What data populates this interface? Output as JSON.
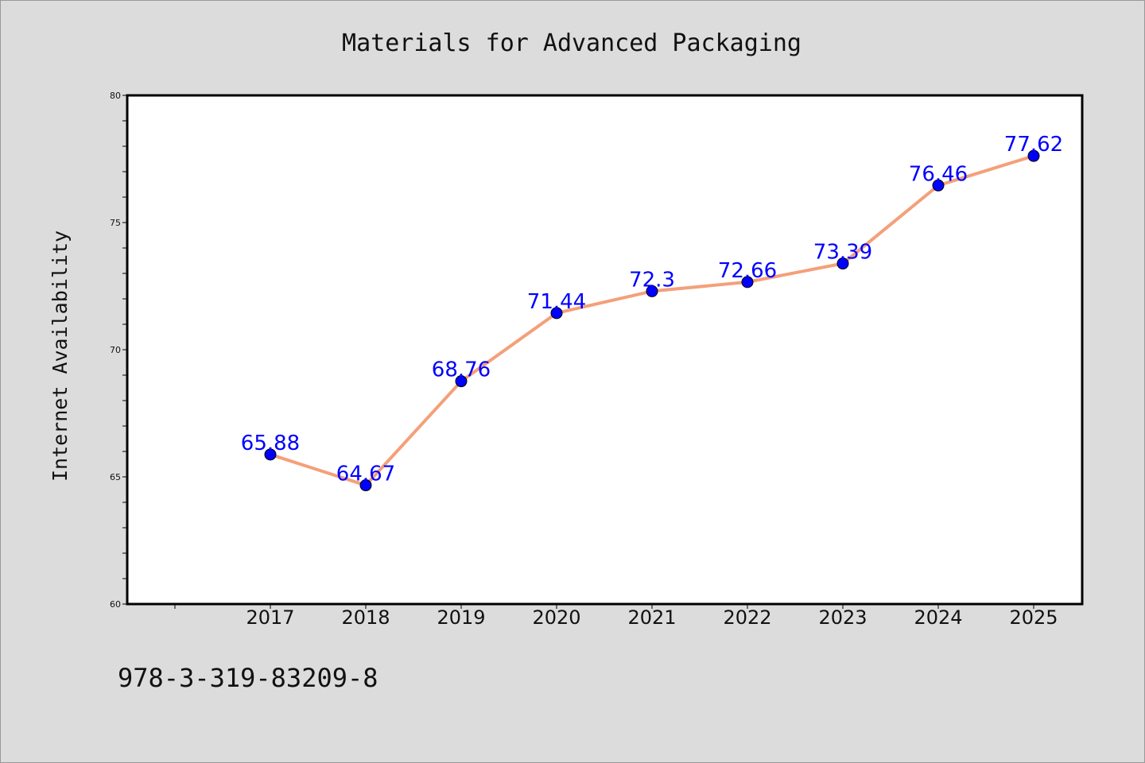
{
  "chart_data": {
    "type": "line",
    "title": "Materials for Advanced Packaging",
    "ylabel": "Internet Availability",
    "xlabel": "",
    "categories": [
      "2017",
      "2018",
      "2019",
      "2020",
      "2021",
      "2022",
      "2023",
      "2024",
      "2025"
    ],
    "series": [
      {
        "values": [
          65.88,
          64.67,
          68.76,
          71.44,
          72.3,
          72.66,
          73.39,
          76.46,
          77.62
        ],
        "line_color": "#f4a07a",
        "marker_color": "#0000ff"
      }
    ],
    "data_labels": [
      "65.88",
      "64.67",
      "68.76",
      "71.44",
      "72.3",
      "72.66",
      "73.39",
      "76.46",
      "77.62"
    ],
    "ylim": [
      60,
      80
    ],
    "yticks": [
      "60",
      "65",
      "70",
      "75",
      "80"
    ],
    "grid": false,
    "legend": "none",
    "label_color": "#0000ff"
  },
  "footer": {
    "code": "978-3-319-83209-8"
  }
}
